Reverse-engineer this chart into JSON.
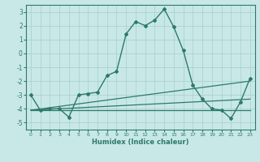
{
  "xlabel": "Humidex (Indice chaleur)",
  "x": [
    0,
    1,
    2,
    3,
    4,
    5,
    6,
    7,
    8,
    9,
    10,
    11,
    12,
    13,
    14,
    15,
    16,
    17,
    18,
    19,
    20,
    21,
    22,
    23
  ],
  "line1": [
    -3.0,
    -4.1,
    -4.0,
    -4.0,
    -4.6,
    -3.0,
    -2.9,
    -2.8,
    -1.6,
    -1.3,
    1.4,
    2.3,
    2.0,
    2.4,
    3.2,
    1.9,
    0.2,
    -2.3,
    -3.3,
    -4.0,
    -4.1,
    -4.7,
    -3.5,
    -1.8
  ],
  "flat_line": [
    -4.1,
    -4.1
  ],
  "trend_line1": [
    -4.1,
    -3.3
  ],
  "trend_line2": [
    -4.1,
    -2.0
  ],
  "color": "#2d7a6a",
  "bg_color": "#c8e8e8",
  "grid_color": "#a8cccc",
  "xlim": [
    -0.5,
    23.5
  ],
  "ylim": [
    -5.5,
    3.5
  ],
  "yticks": [
    -5,
    -4,
    -3,
    -2,
    -1,
    0,
    1,
    2,
    3
  ],
  "xticks": [
    0,
    1,
    2,
    3,
    4,
    5,
    6,
    7,
    8,
    9,
    10,
    11,
    12,
    13,
    14,
    15,
    16,
    17,
    18,
    19,
    20,
    21,
    22,
    23
  ]
}
